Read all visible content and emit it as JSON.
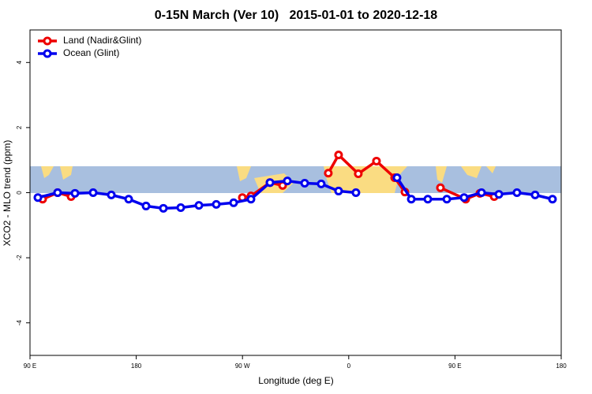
{
  "chart_data": {
    "type": "line",
    "title": "0-15N March (Ver 10)   2015-01-01 to 2020-12-18",
    "x_label": "Longitude (deg E)",
    "y_label": "XCO2 - MLO trend (ppm)",
    "xlim": [
      90,
      540
    ],
    "xticks": [
      {
        "value": 90,
        "label": "90 E"
      },
      180,
      {
        "value": 270,
        "label": "90 W"
      },
      {
        "value": 360,
        "label": "0"
      },
      {
        "value": 450,
        "label": "90 E"
      },
      {
        "value": 540,
        "label": "180"
      }
    ],
    "ylim": [
      -5,
      5
    ],
    "yticks": [
      -4,
      -2,
      0,
      2,
      4
    ],
    "legend": "top-left",
    "series": [
      {
        "name": "Land (Nadir&Glint)",
        "color": "#ee0000",
        "x": [
          100.7,
          113.4,
          124.8,
          null,
          269.9,
          277.2,
          293.3,
          304.0,
          null,
          342.7,
          351.4,
          368.1,
          383.5,
          398.9,
          407.6,
          null,
          437.7,
          459.1,
          471.1,
          483.2
        ],
        "values": [
          -0.2,
          0.0,
          -0.12,
          null,
          -0.15,
          -0.1,
          0.31,
          0.22,
          null,
          0.6,
          1.16,
          0.58,
          0.97,
          0.46,
          0.02,
          null,
          0.15,
          -0.2,
          -0.02,
          -0.12
        ]
      },
      {
        "name": "Ocean (Glint)",
        "color": "#0000ee",
        "x": [
          96.7,
          113.4,
          128.1,
          143.5,
          158.9,
          173.6,
          188.3,
          203.0,
          217.7,
          233.1,
          247.8,
          262.5,
          277.2,
          293.3,
          308.0,
          322.7,
          336.7,
          351.4,
          366.1,
          null,
          400.9,
          413.0,
          427.0,
          443.1,
          457.7,
          472.5,
          487.2,
          502.5,
          517.9,
          532.6
        ],
        "values": [
          -0.15,
          0.0,
          -0.02,
          0.0,
          -0.07,
          -0.2,
          -0.41,
          -0.48,
          -0.46,
          -0.39,
          -0.36,
          -0.31,
          -0.2,
          0.31,
          0.36,
          0.29,
          0.27,
          0.05,
          0.0,
          null,
          0.46,
          -0.2,
          -0.2,
          -0.2,
          -0.15,
          0.0,
          -0.05,
          0.0,
          -0.07,
          -0.2
        ]
      }
    ]
  }
}
